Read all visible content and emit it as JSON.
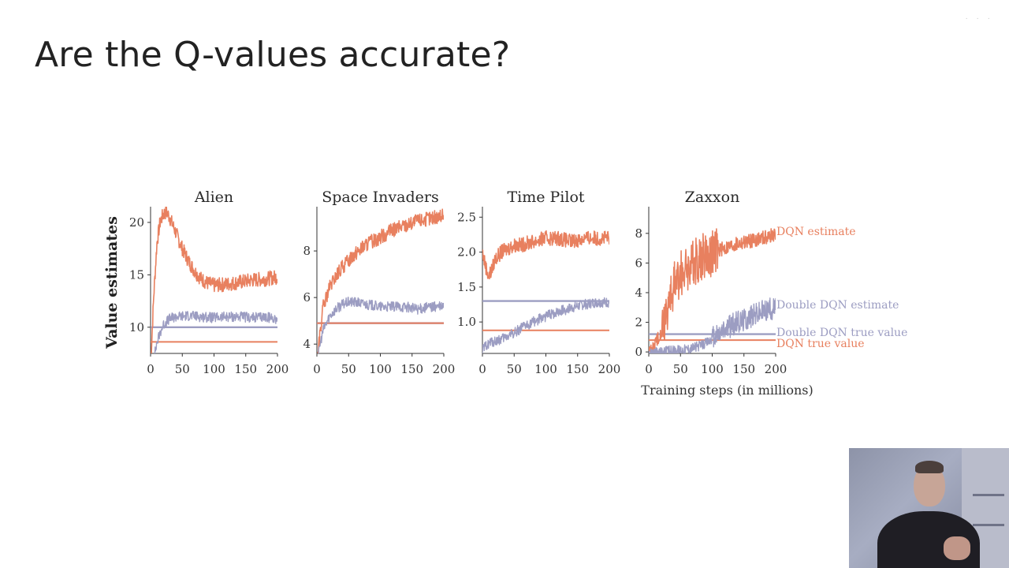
{
  "slide": {
    "title": "Are the Q-values accurate?"
  },
  "colors": {
    "dqn": "#e8805f",
    "double_dqn": "#9c9dc2",
    "axis": "#333333"
  },
  "webcam": {
    "icon": "presenter-webcam"
  },
  "chart_data": [
    {
      "type": "line",
      "title": "Alien",
      "ylabel": "Value estimates",
      "xlabel": "",
      "xlim": [
        0,
        200
      ],
      "ylim": [
        7.5,
        21.5
      ],
      "xticks": [
        0,
        50,
        100,
        150,
        200
      ],
      "yticks": [
        10,
        15,
        20
      ],
      "series": [
        {
          "name": "DQN estimate",
          "x": [
            0,
            5,
            10,
            15,
            20,
            25,
            30,
            40,
            50,
            60,
            70,
            80,
            90,
            100,
            120,
            140,
            160,
            180,
            200
          ],
          "values": [
            6.0,
            13.0,
            18.0,
            20.0,
            20.8,
            21.0,
            20.5,
            19.0,
            17.5,
            16.3,
            15.3,
            14.6,
            14.2,
            14.0,
            14.1,
            14.3,
            14.5,
            14.6,
            14.8
          ]
        },
        {
          "name": "Double DQN estimate",
          "x": [
            0,
            5,
            10,
            15,
            20,
            30,
            40,
            60,
            80,
            100,
            120,
            140,
            160,
            180,
            200
          ],
          "values": [
            6.0,
            7.0,
            8.5,
            9.5,
            10.2,
            10.8,
            11.0,
            11.1,
            11.0,
            10.9,
            11.0,
            11.0,
            10.9,
            11.0,
            10.8
          ]
        },
        {
          "name": "Double DQN true value",
          "value": 10.0
        },
        {
          "name": "DQN true value",
          "value": 8.6
        }
      ]
    },
    {
      "type": "line",
      "title": "Space Invaders",
      "ylabel": "",
      "xlabel": "",
      "xlim": [
        0,
        200
      ],
      "ylim": [
        3.6,
        9.9
      ],
      "xticks": [
        0,
        50,
        100,
        150,
        200
      ],
      "yticks": [
        4,
        6,
        8
      ],
      "series": [
        {
          "name": "DQN estimate",
          "x": [
            0,
            5,
            10,
            20,
            30,
            40,
            50,
            60,
            80,
            100,
            120,
            140,
            160,
            180,
            200
          ],
          "values": [
            3.0,
            4.5,
            5.6,
            6.4,
            6.9,
            7.3,
            7.6,
            7.9,
            8.3,
            8.6,
            8.9,
            9.1,
            9.3,
            9.4,
            9.5
          ]
        },
        {
          "name": "Double DQN estimate",
          "x": [
            0,
            5,
            10,
            20,
            30,
            40,
            50,
            60,
            80,
            100,
            120,
            140,
            160,
            180,
            200
          ],
          "values": [
            3.0,
            4.0,
            4.6,
            5.2,
            5.5,
            5.7,
            5.8,
            5.8,
            5.7,
            5.6,
            5.6,
            5.6,
            5.5,
            5.6,
            5.6
          ]
        },
        {
          "name": "Double DQN true value",
          "value": 4.9
        },
        {
          "name": "DQN true value",
          "value": 4.9
        }
      ]
    },
    {
      "type": "line",
      "title": "Time Pilot",
      "ylabel": "",
      "xlabel": "",
      "xlim": [
        0,
        200
      ],
      "ylim": [
        0.55,
        2.65
      ],
      "xticks": [
        0,
        50,
        100,
        150,
        200
      ],
      "yticks": [
        1.0,
        1.5,
        2.0,
        2.5
      ],
      "series": [
        {
          "name": "DQN estimate",
          "x": [
            0,
            5,
            10,
            15,
            20,
            30,
            40,
            50,
            60,
            80,
            100,
            120,
            140,
            160,
            180,
            200
          ],
          "values": [
            2.0,
            1.8,
            1.65,
            1.75,
            1.9,
            2.0,
            2.05,
            2.1,
            2.1,
            2.15,
            2.2,
            2.2,
            2.15,
            2.2,
            2.2,
            2.2
          ]
        },
        {
          "name": "Double DQN estimate",
          "x": [
            0,
            5,
            10,
            20,
            30,
            40,
            50,
            60,
            80,
            100,
            120,
            140,
            160,
            180,
            200
          ],
          "values": [
            0.6,
            0.65,
            0.7,
            0.72,
            0.75,
            0.8,
            0.85,
            0.9,
            1.0,
            1.08,
            1.15,
            1.2,
            1.25,
            1.28,
            1.28
          ]
        },
        {
          "name": "Double DQN true value",
          "value": 1.3
        },
        {
          "name": "DQN true value",
          "value": 0.88
        }
      ]
    },
    {
      "type": "line",
      "title": "Zaxxon",
      "ylabel": "",
      "xlabel": "Training steps (in millions)",
      "xlim": [
        0,
        200
      ],
      "ylim": [
        -0.1,
        9.8
      ],
      "xticks": [
        0,
        50,
        100,
        150,
        200
      ],
      "yticks": [
        0,
        2,
        4,
        6,
        8
      ],
      "series": [
        {
          "name": "DQN estimate",
          "x": [
            0,
            10,
            20,
            30,
            40,
            50,
            60,
            70,
            80,
            100,
            120,
            140,
            160,
            180,
            200
          ],
          "values": [
            0.0,
            0.5,
            1.5,
            3.0,
            4.5,
            5.3,
            5.7,
            6.0,
            6.3,
            6.7,
            7.0,
            7.3,
            7.5,
            7.7,
            7.9
          ]
        },
        {
          "name": "Double DQN estimate",
          "x": [
            0,
            20,
            40,
            60,
            80,
            90,
            100,
            110,
            120,
            130,
            140,
            150,
            160,
            170,
            180,
            190,
            200
          ],
          "values": [
            0.0,
            0.0,
            0.1,
            0.2,
            0.4,
            0.6,
            0.9,
            1.2,
            1.5,
            1.8,
            2.0,
            2.2,
            2.4,
            2.6,
            2.8,
            2.9,
            3.0
          ]
        },
        {
          "name": "Double DQN true value",
          "value": 1.2
        },
        {
          "name": "DQN true value",
          "value": 0.8
        }
      ]
    }
  ]
}
